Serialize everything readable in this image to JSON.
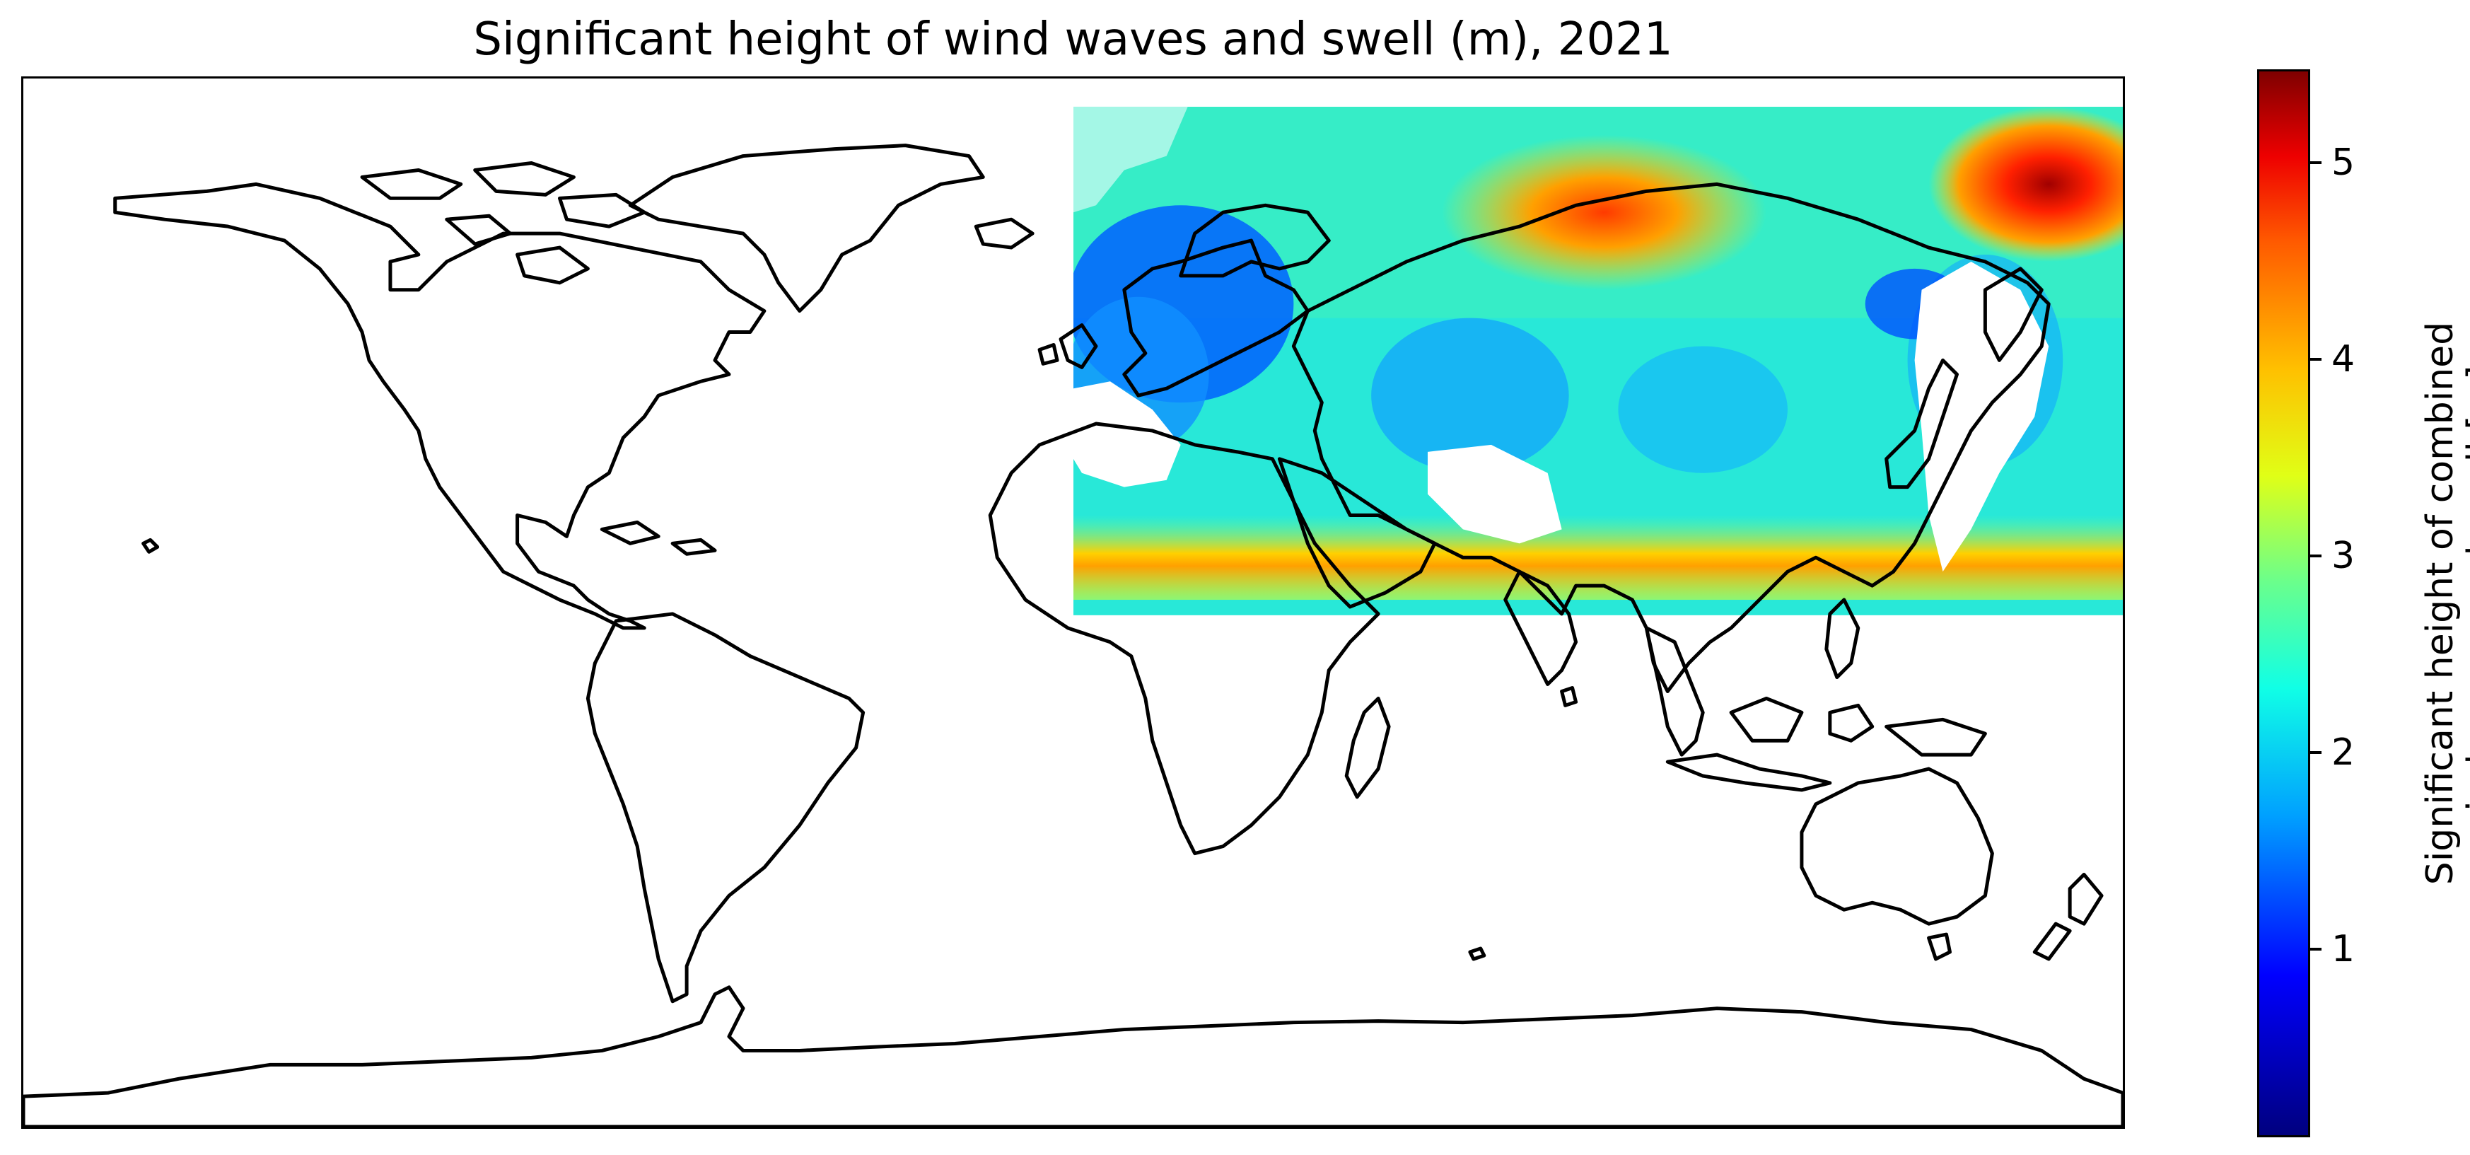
{
  "title": "Significant height of wind waves and swell (m), 2021",
  "colorbar": {
    "label_line1": "Significant height of combined",
    "label_line2": "wind waves and swell [m]",
    "ticks": [
      "1",
      "2",
      "3",
      "4",
      "5"
    ],
    "range": [
      0,
      5.5
    ],
    "colormap": "jet",
    "colors": [
      "#00007f",
      "#0000ff",
      "#00a0ff",
      "#10ffe6",
      "#6aff8c",
      "#e0ff16",
      "#ffc000",
      "#ff5a00",
      "#ee0000",
      "#7f0000"
    ]
  },
  "map": {
    "projection": "PlateCarree",
    "coastlines": true,
    "data_coverage": "partial (shifted swath)"
  }
}
